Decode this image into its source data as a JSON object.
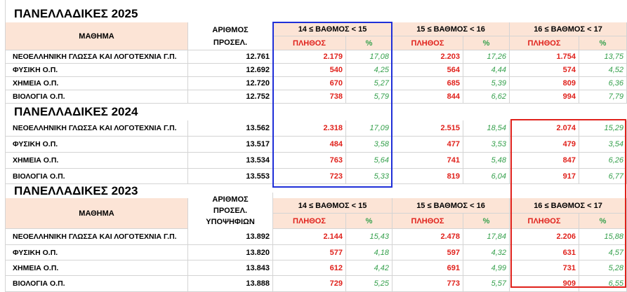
{
  "y2025": {
    "title": "ΠΑΝΕΛΛΑΔΙΚΕΣ 2025",
    "header": {
      "subject": "ΜΑΘΗΜΑ",
      "count_line1": "ΑΡΙΘΜΟΣ",
      "count_line2": "ΠΡΟΣΕΛ.",
      "range1": "14 ≤ ΒΑΘΜΟΣ < 15",
      "range2": "15 ≤ ΒΑΘΜΟΣ < 16",
      "range3": "16 ≤ ΒΑΘΜΟΣ < 17",
      "plithos": "ΠΛΗΘΟΣ",
      "pct": "%"
    },
    "rows": [
      {
        "subject": "ΝΕΟΕΛΛΗΝΙΚΗ ΓΛΩΣΣΑ ΚΑΙ ΛΟΓΟΤΕΧΝΙΑ Γ.Π.",
        "total": "12.761",
        "c1": "2.179",
        "p1": "17,08",
        "c2": "2.203",
        "p2": "17,26",
        "c3": "1.754",
        "p3": "13,75"
      },
      {
        "subject": "ΦΥΣΙΚΗ Ο.Π.",
        "total": "12.692",
        "c1": "540",
        "p1": "4,25",
        "c2": "564",
        "p2": "4,44",
        "c3": "574",
        "p3": "4,52"
      },
      {
        "subject": "ΧΗΜΕΙΑ Ο.Π.",
        "total": "12.720",
        "c1": "670",
        "p1": "5,27",
        "c2": "685",
        "p2": "5,39",
        "c3": "809",
        "p3": "6,36"
      },
      {
        "subject": "ΒΙΟΛΟΓΙΑ Ο.Π.",
        "total": "12.752",
        "c1": "738",
        "p1": "5,79",
        "c2": "844",
        "p2": "6,62",
        "c3": "994",
        "p3": "7,79"
      }
    ]
  },
  "y2024": {
    "title": "ΠΑΝΕΛΛΑΔΙΚΕΣ 2024",
    "rows": [
      {
        "subject": "ΝΕΟΕΛΛΗΝΙΚΗ ΓΛΩΣΣΑ ΚΑΙ ΛΟΓΟΤΕΧΝΙΑ Γ.Π.",
        "total": "13.562",
        "c1": "2.318",
        "p1": "17,09",
        "c2": "2.515",
        "p2": "18,54",
        "c3": "2.074",
        "p3": "15,29"
      },
      {
        "subject": "ΦΥΣΙΚΗ Ο.Π.",
        "total": "13.517",
        "c1": "484",
        "p1": "3,58",
        "c2": "477",
        "p2": "3,53",
        "c3": "479",
        "p3": "3,54"
      },
      {
        "subject": "ΧΗΜΕΙΑ Ο.Π.",
        "total": "13.534",
        "c1": "763",
        "p1": "5,64",
        "c2": "741",
        "p2": "5,48",
        "c3": "847",
        "p3": "6,26"
      },
      {
        "subject": "ΒΙΟΛΟΓΙΑ Ο.Π.",
        "total": "13.553",
        "c1": "723",
        "p1": "5,33",
        "c2": "819",
        "p2": "6,04",
        "c3": "917",
        "p3": "6,77"
      }
    ]
  },
  "y2023": {
    "title": "ΠΑΝΕΛΛΑΔΙΚΕΣ 2023",
    "header": {
      "subject": "ΜΑΘΗΜΑ",
      "count_line1": "ΑΡΙΘΜΟΣ",
      "count_line2": "ΠΡΟΣΕΛ.",
      "count_line3": "ΥΠΟΨΗΦΙΩΝ",
      "range1": "14 ≤ ΒΑΘΜΟΣ < 15",
      "range2": "15 ≤ ΒΑΘΜΟΣ < 16",
      "range3": "16 ≤ ΒΑΘΜΟΣ < 17",
      "plithos": "ΠΛΗΘΟΣ",
      "pct": "%"
    },
    "rows": [
      {
        "subject": "ΝΕΟΕΛΛΗΝΙΚΗ ΓΛΩΣΣΑ ΚΑΙ ΛΟΓΟΤΕΧΝΙΑ Γ.Π.",
        "total": "13.892",
        "c1": "2.144",
        "p1": "15,43",
        "c2": "2.478",
        "p2": "17,84",
        "c3": "2.206",
        "p3": "15,88"
      },
      {
        "subject": "ΦΥΣΙΚΗ Ο.Π.",
        "total": "13.820",
        "c1": "577",
        "p1": "4,18",
        "c2": "597",
        "p2": "4,32",
        "c3": "631",
        "p3": "4,57"
      },
      {
        "subject": "ΧΗΜΕΙΑ Ο.Π.",
        "total": "13.843",
        "c1": "612",
        "p1": "4,42",
        "c2": "691",
        "p2": "4,99",
        "c3": "731",
        "p3": "5,28"
      },
      {
        "subject": "ΒΙΟΛΟΓΙΑ Ο.Π.",
        "total": "13.888",
        "c1": "729",
        "p1": "5,25",
        "c2": "773",
        "p2": "5,57",
        "c3": "909",
        "p3": "6,55"
      }
    ]
  },
  "colors": {
    "count": "#e0211b",
    "percent": "#35a04c",
    "header_fill": "#fce4d6",
    "highlight_blue": "#1f2fd8",
    "highlight_red": "#e0211b"
  }
}
